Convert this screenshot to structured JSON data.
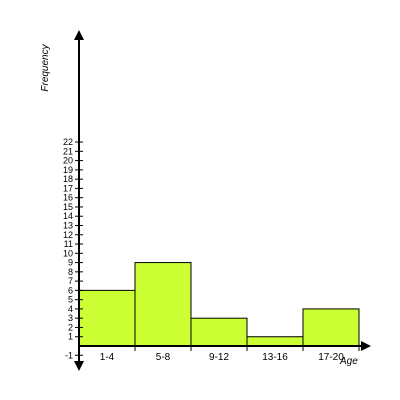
{
  "chart_data": {
    "type": "bar",
    "title": "",
    "xlabel": "Age",
    "ylabel": "Frequency",
    "categories": [
      "1-4",
      "5-8",
      "9-12",
      "13-16",
      "17-20"
    ],
    "values": [
      6,
      9,
      3,
      1,
      4
    ],
    "ylim": [
      -1,
      22
    ],
    "yticks": [
      -1,
      1,
      2,
      3,
      4,
      5,
      6,
      7,
      8,
      9,
      10,
      11,
      12,
      13,
      14,
      15,
      16,
      17,
      18,
      19,
      20,
      21,
      22
    ],
    "bar_color": "#ccff33",
    "bar_outline": "#000000",
    "grid": false,
    "legend": "none"
  }
}
